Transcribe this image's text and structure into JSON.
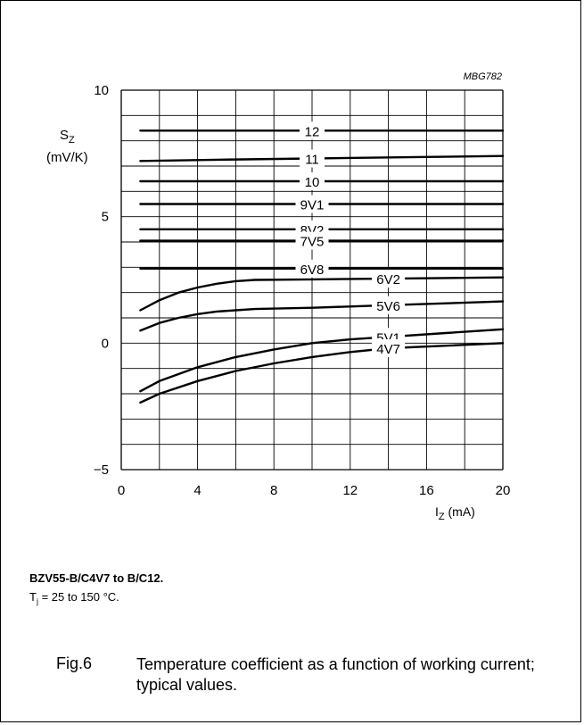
{
  "figure": {
    "code": "MBG782",
    "number": "Fig.6",
    "title": "Temperature coefficient as a function of working current; typical values."
  },
  "caption": {
    "title": "BZV55-B/C4V7 to B/C12.",
    "condition_prefix": "T",
    "condition_sub": "j",
    "condition_rest": " = 25 to 150 °C."
  },
  "axes": {
    "y_symbol": "S",
    "y_sub": "Z",
    "y_unit": "(mV/K)",
    "x_symbol": "I",
    "x_sub": "Z",
    "x_unit": " (mA)"
  },
  "chart_data": {
    "type": "line",
    "xlim": [
      0,
      20
    ],
    "ylim": [
      -5,
      10
    ],
    "x_ticks": [
      "0",
      "4",
      "8",
      "12",
      "16",
      "20"
    ],
    "y_ticks": [
      {
        "v": 10,
        "t": "10"
      },
      {
        "v": 5,
        "t": "5"
      },
      {
        "v": 0,
        "t": "0"
      },
      {
        "v": -5,
        "t": "−5"
      }
    ],
    "grid": true,
    "series": [
      {
        "name": "12",
        "label_x": 10,
        "x": [
          1,
          20
        ],
        "y": [
          8.4,
          8.4
        ]
      },
      {
        "name": "11",
        "label_x": 10,
        "x": [
          1,
          5,
          10,
          15,
          20
        ],
        "y": [
          7.2,
          7.25,
          7.3,
          7.35,
          7.4
        ]
      },
      {
        "name": "10",
        "label_x": 10,
        "x": [
          1,
          20
        ],
        "y": [
          6.4,
          6.4
        ]
      },
      {
        "name": "9V1",
        "label_x": 10,
        "x": [
          1,
          20
        ],
        "y": [
          5.5,
          5.5
        ]
      },
      {
        "name": "8V2",
        "label_x": 10,
        "x": [
          1,
          20
        ],
        "y": [
          4.5,
          4.5
        ]
      },
      {
        "name": "7V5",
        "label_x": 10,
        "x": [
          1,
          20
        ],
        "y": [
          4.05,
          4.05
        ]
      },
      {
        "name": "6V8",
        "label_x": 10,
        "x": [
          1,
          20
        ],
        "y": [
          2.95,
          2.95
        ]
      },
      {
        "name": "6V2",
        "label_x": 14,
        "x": [
          1,
          2,
          3,
          4,
          5,
          6,
          7,
          10,
          14,
          20
        ],
        "y": [
          1.3,
          1.7,
          2.0,
          2.2,
          2.35,
          2.45,
          2.5,
          2.52,
          2.55,
          2.6
        ]
      },
      {
        "name": "5V6",
        "label_x": 14,
        "x": [
          1,
          2,
          3,
          4,
          5,
          6,
          7,
          10,
          14,
          20
        ],
        "y": [
          0.5,
          0.8,
          1.0,
          1.15,
          1.25,
          1.3,
          1.35,
          1.4,
          1.5,
          1.65
        ]
      },
      {
        "name": "5V1",
        "label_x": 14,
        "x": [
          1,
          2,
          4,
          6,
          8,
          10,
          12,
          14,
          17,
          20
        ],
        "y": [
          -1.9,
          -1.5,
          -0.95,
          -0.55,
          -0.25,
          0.0,
          0.15,
          0.25,
          0.4,
          0.55
        ]
      },
      {
        "name": "4V7",
        "label_x": 14,
        "x": [
          1,
          2,
          4,
          6,
          8,
          10,
          12,
          14,
          17,
          20
        ],
        "y": [
          -2.35,
          -2.0,
          -1.5,
          -1.1,
          -0.8,
          -0.55,
          -0.35,
          -0.2,
          -0.1,
          0.0
        ]
      }
    ]
  }
}
